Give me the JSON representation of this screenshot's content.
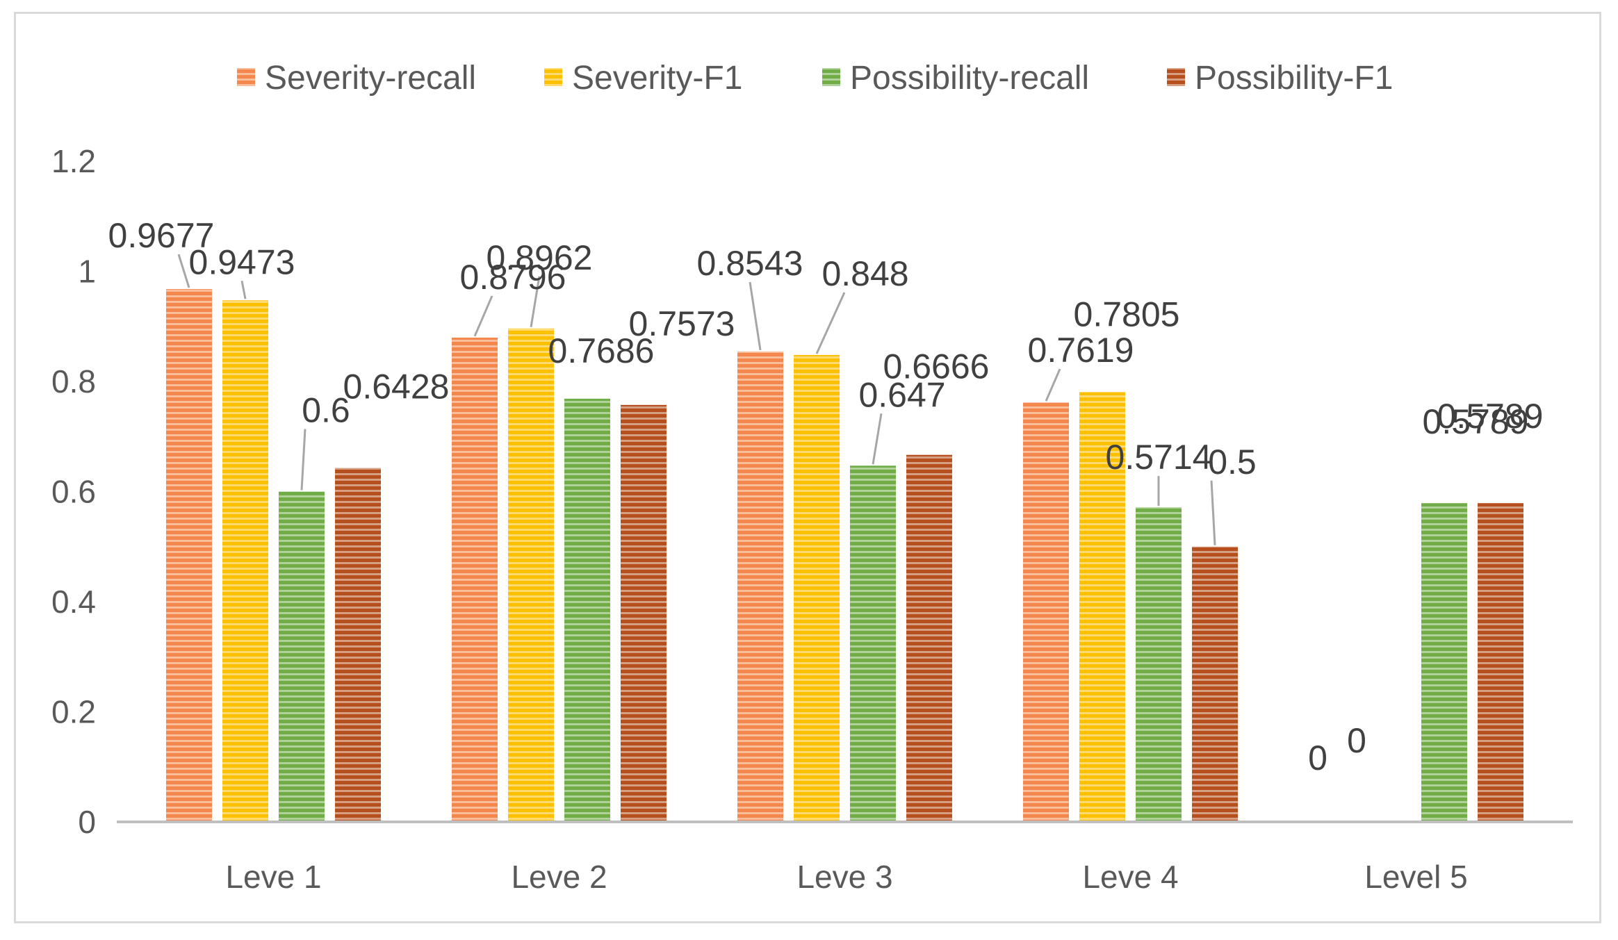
{
  "chart_data": {
    "type": "bar",
    "title": "",
    "xlabel": "",
    "ylabel": "",
    "ylim": [
      0,
      1.2
    ],
    "yticks": [
      "0",
      "0.2",
      "0.4",
      "0.6",
      "0.8",
      "1",
      "1.2"
    ],
    "categories": [
      "Leve 1",
      "Leve 2",
      "Leve 3",
      "Leve 4",
      "Level 5"
    ],
    "series": [
      {
        "name": "Severity-recall",
        "color": "#F4874B",
        "values": [
          0.9677,
          0.8796,
          0.8543,
          0.7619,
          0
        ],
        "labels": [
          "0.9677",
          "0.8796",
          "0.8543",
          "0.7619",
          "0"
        ]
      },
      {
        "name": "Severity-F1",
        "color": "#FFC000",
        "values": [
          0.9473,
          0.8962,
          0.848,
          0.7805,
          0
        ],
        "labels": [
          "0.9473",
          "0.8962",
          "0.848",
          "0.7805",
          "0"
        ]
      },
      {
        "name": "Possibility-recall",
        "color": "#70AD47",
        "values": [
          0.6,
          0.7686,
          0.647,
          0.5714,
          0.5789
        ],
        "labels": [
          "0.6",
          "0.7686",
          "0.647",
          "0.5714",
          "0.5789"
        ]
      },
      {
        "name": "Possibility-F1",
        "color": "#B5501E",
        "values": [
          0.6428,
          0.7573,
          0.6666,
          0.5,
          0.5789
        ],
        "labels": [
          "0.6428",
          "0.7573",
          "0.6666",
          "0.5",
          "0.5789"
        ]
      }
    ],
    "legend_position": "top",
    "grid": false,
    "bar_pattern": "horizontal-stripes"
  }
}
